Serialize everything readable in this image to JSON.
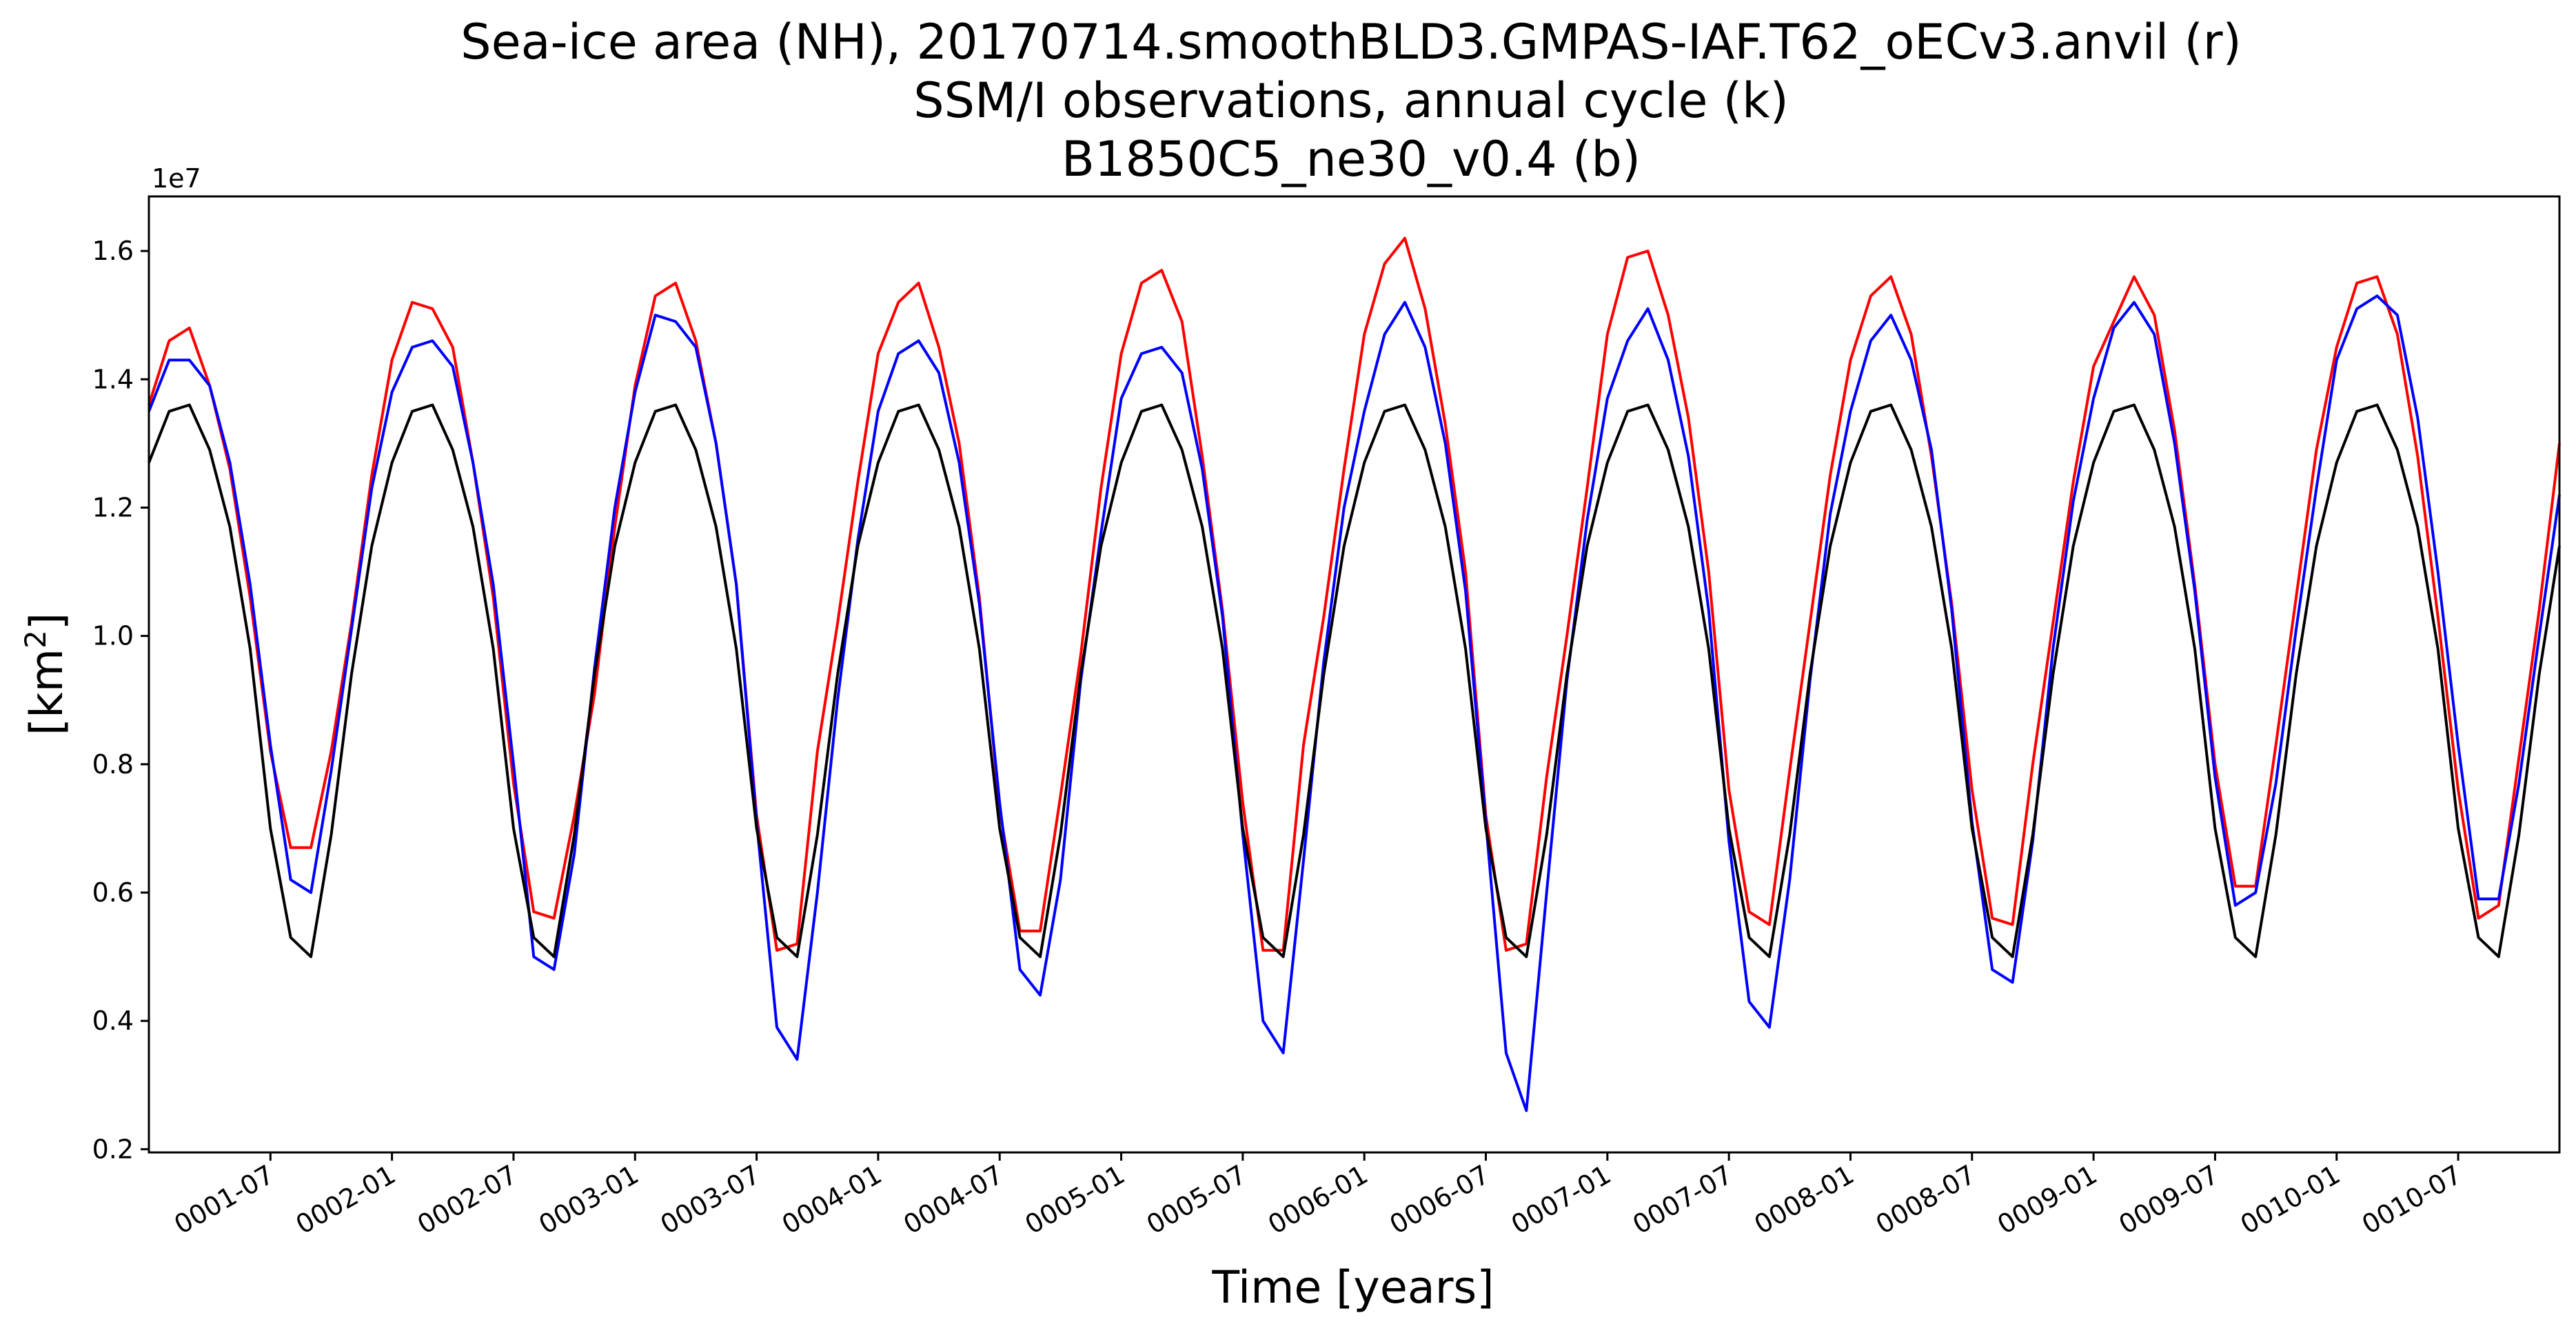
{
  "chart_data": {
    "type": "line",
    "title_lines": [
      "Sea-ice area (NH), 20170714.smoothBLD3.GMPAS-IAF.T62_oECv3.anvil (r)",
      "SSM/I observations, annual cycle (k)",
      "B1850C5_ne30_v0.4 (b)"
    ],
    "xlabel": "Time [years]",
    "ylabel_base": "[km",
    "ylabel_sup": "2",
    "ylabel_end": "]",
    "y_offset_label": "1e7",
    "ylim": [
      1.95,
      16.85
    ],
    "xlim": [
      0,
      119
    ],
    "x_unit": "months since 0001-01",
    "x_ticks": [
      {
        "pos": 6,
        "label": "0001-07"
      },
      {
        "pos": 12,
        "label": "0002-01"
      },
      {
        "pos": 18,
        "label": "0002-07"
      },
      {
        "pos": 24,
        "label": "0003-01"
      },
      {
        "pos": 30,
        "label": "0003-07"
      },
      {
        "pos": 36,
        "label": "0004-01"
      },
      {
        "pos": 42,
        "label": "0004-07"
      },
      {
        "pos": 48,
        "label": "0005-01"
      },
      {
        "pos": 54,
        "label": "0005-07"
      },
      {
        "pos": 60,
        "label": "0006-01"
      },
      {
        "pos": 66,
        "label": "0006-07"
      },
      {
        "pos": 72,
        "label": "0007-01"
      },
      {
        "pos": 78,
        "label": "0007-07"
      },
      {
        "pos": 84,
        "label": "0008-01"
      },
      {
        "pos": 90,
        "label": "0008-07"
      },
      {
        "pos": 96,
        "label": "0009-01"
      },
      {
        "pos": 102,
        "label": "0009-07"
      },
      {
        "pos": 108,
        "label": "0010-01"
      },
      {
        "pos": 114,
        "label": "0010-07"
      }
    ],
    "y_ticks": [
      {
        "value": 2,
        "label": "0.2"
      },
      {
        "value": 4,
        "label": "0.4"
      },
      {
        "value": 6,
        "label": "0.6"
      },
      {
        "value": 8,
        "label": "0.8"
      },
      {
        "value": 10,
        "label": "1.0"
      },
      {
        "value": 12,
        "label": "1.2"
      },
      {
        "value": 14,
        "label": "1.4"
      },
      {
        "value": 16,
        "label": "1.6"
      }
    ],
    "series": [
      {
        "key": "r",
        "color": "#ff0000",
        "values": [
          13.6,
          14.6,
          14.8,
          13.9,
          12.6,
          10.6,
          8.2,
          6.7,
          6.7,
          8.2,
          10.2,
          12.5,
          14.3,
          15.2,
          15.1,
          14.5,
          12.7,
          10.6,
          7.7,
          5.7,
          5.6,
          7.2,
          9.1,
          11.7,
          13.9,
          15.3,
          15.5,
          14.6,
          13.0,
          10.8,
          7.2,
          5.1,
          5.2,
          8.2,
          10.2,
          12.4,
          14.4,
          15.2,
          15.5,
          14.5,
          13.0,
          10.6,
          7.3,
          5.4,
          5.4,
          7.5,
          9.7,
          12.3,
          14.4,
          15.5,
          15.7,
          14.9,
          12.8,
          10.4,
          7.4,
          5.1,
          5.1,
          8.3,
          10.3,
          12.6,
          14.7,
          15.8,
          16.2,
          15.1,
          13.3,
          11.0,
          7.2,
          5.1,
          5.2,
          7.8,
          10.0,
          12.3,
          14.7,
          15.9,
          16.0,
          15.0,
          13.4,
          11.0,
          7.6,
          5.7,
          5.5,
          7.9,
          10.2,
          12.5,
          14.3,
          15.3,
          15.6,
          14.7,
          12.8,
          10.5,
          7.6,
          5.6,
          5.5,
          8.0,
          10.2,
          12.4,
          14.2,
          14.9,
          15.6,
          15.0,
          13.2,
          10.8,
          8.0,
          6.1,
          6.1,
          8.3,
          10.6,
          12.9,
          14.5,
          15.5,
          15.6,
          14.7,
          12.8,
          10.3,
          7.6,
          5.6,
          5.8,
          8.1,
          10.4,
          13.0
        ]
      },
      {
        "key": "b",
        "color": "#0000ff",
        "values": [
          13.5,
          14.3,
          14.3,
          13.9,
          12.7,
          10.8,
          8.3,
          6.2,
          6.0,
          7.9,
          10.1,
          12.3,
          13.8,
          14.5,
          14.6,
          14.2,
          12.7,
          10.8,
          8.0,
          5.0,
          4.8,
          6.6,
          9.5,
          12.0,
          13.8,
          15.0,
          14.9,
          14.5,
          13.0,
          10.8,
          7.1,
          3.9,
          3.4,
          6.0,
          9.0,
          11.5,
          13.5,
          14.4,
          14.6,
          14.1,
          12.7,
          10.5,
          7.4,
          4.8,
          4.4,
          6.2,
          9.3,
          11.6,
          13.7,
          14.4,
          14.5,
          14.1,
          12.6,
          10.3,
          6.9,
          4.0,
          3.5,
          6.5,
          9.6,
          12.0,
          13.5,
          14.7,
          15.2,
          14.5,
          13.0,
          10.7,
          7.1,
          3.5,
          2.6,
          6.0,
          9.3,
          11.8,
          13.7,
          14.6,
          15.1,
          14.3,
          12.8,
          10.4,
          6.8,
          4.3,
          3.9,
          6.2,
          9.3,
          11.9,
          13.5,
          14.6,
          15.0,
          14.3,
          12.9,
          10.4,
          7.1,
          4.8,
          4.6,
          6.8,
          9.8,
          12.1,
          13.7,
          14.8,
          15.2,
          14.7,
          13.0,
          10.7,
          7.8,
          5.8,
          6.0,
          7.7,
          10.1,
          12.3,
          14.3,
          15.1,
          15.3,
          15.0,
          13.4,
          11.0,
          8.3,
          5.9,
          5.9,
          7.7,
          10.0,
          12.2
        ]
      },
      {
        "key": "k",
        "color": "#000000",
        "values": [
          12.7,
          13.5,
          13.6,
          12.9,
          11.7,
          9.8,
          7.0,
          5.3,
          5.0,
          6.9,
          9.4,
          11.4,
          12.7,
          13.5,
          13.6,
          12.9,
          11.7,
          9.8,
          7.0,
          5.3,
          5.0,
          6.9,
          9.4,
          11.4,
          12.7,
          13.5,
          13.6,
          12.9,
          11.7,
          9.8,
          7.0,
          5.3,
          5.0,
          6.9,
          9.4,
          11.4,
          12.7,
          13.5,
          13.6,
          12.9,
          11.7,
          9.8,
          7.0,
          5.3,
          5.0,
          6.9,
          9.4,
          11.4,
          12.7,
          13.5,
          13.6,
          12.9,
          11.7,
          9.8,
          7.0,
          5.3,
          5.0,
          6.9,
          9.4,
          11.4,
          12.7,
          13.5,
          13.6,
          12.9,
          11.7,
          9.8,
          7.0,
          5.3,
          5.0,
          6.9,
          9.4,
          11.4,
          12.7,
          13.5,
          13.6,
          12.9,
          11.7,
          9.8,
          7.0,
          5.3,
          5.0,
          6.9,
          9.4,
          11.4,
          12.7,
          13.5,
          13.6,
          12.9,
          11.7,
          9.8,
          7.0,
          5.3,
          5.0,
          6.9,
          9.4,
          11.4,
          12.7,
          13.5,
          13.6,
          12.9,
          11.7,
          9.8,
          7.0,
          5.3,
          5.0,
          6.9,
          9.4,
          11.4,
          12.7,
          13.5,
          13.6,
          12.9,
          11.7,
          9.8,
          7.0,
          5.3,
          5.0,
          6.9,
          9.4,
          11.4
        ]
      }
    ],
    "grid": false,
    "legend": "none"
  }
}
